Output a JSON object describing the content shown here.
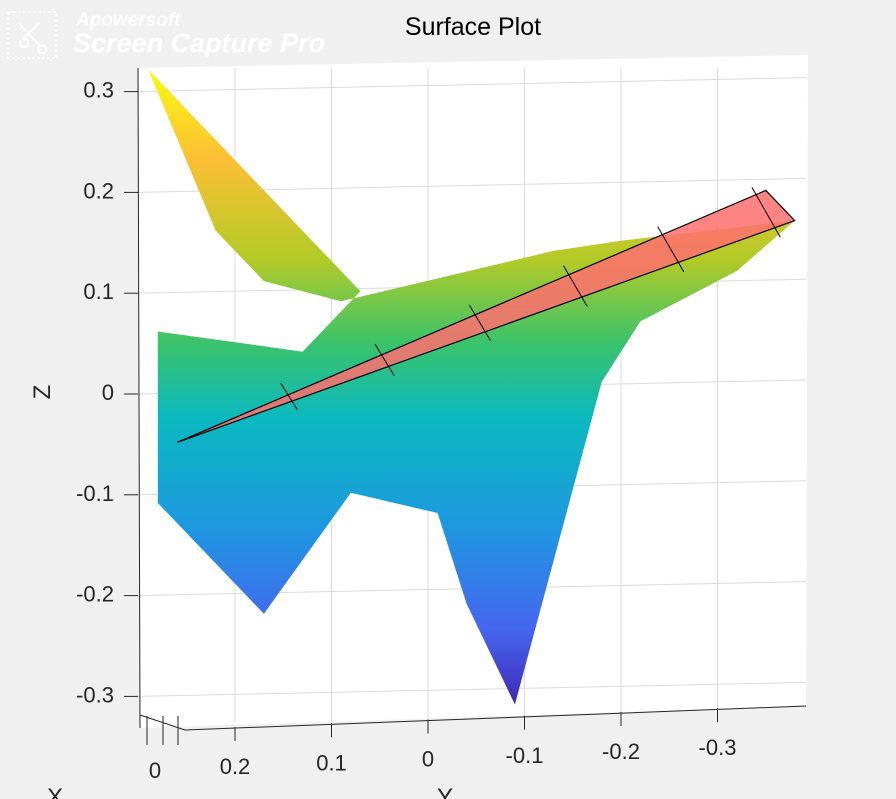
{
  "watermark": {
    "brand": "Apowersoft",
    "product": "Screen Capture Pro",
    "logo_icon": "scissors-pen-icon"
  },
  "chart_data": {
    "type": "surface",
    "title": "Surface Plot",
    "zlabel": "Z",
    "ylabel": "Y",
    "xlabel": "X",
    "z_ticks": [
      "0.3",
      "0.2",
      "0.1",
      "0",
      "-0.1",
      "-0.2",
      "-0.3"
    ],
    "y_ticks": [
      "0.2",
      "0.1",
      "0",
      "-0.1",
      "-0.2",
      "-0.3"
    ],
    "x_ticks": [
      "0"
    ],
    "zlim": [
      -0.33,
      0.33
    ],
    "ylim": [
      0.3,
      -0.4
    ],
    "grid": true,
    "colormap": "parula",
    "series": [
      {
        "kind": "surface",
        "outline_yz": [
          [
            0.29,
            0.32
          ],
          [
            0.22,
            0.16
          ],
          [
            0.17,
            0.11
          ],
          [
            0.09,
            0.09
          ],
          [
            -0.13,
            0.14
          ],
          [
            -0.2,
            0.15
          ],
          [
            -0.38,
            0.17
          ],
          [
            -0.32,
            0.12
          ],
          [
            -0.22,
            0.07
          ],
          [
            -0.18,
            0.01
          ],
          [
            -0.09,
            -0.31
          ],
          [
            -0.04,
            -0.21
          ],
          [
            -0.01,
            -0.12
          ],
          [
            0.08,
            -0.1
          ],
          [
            0.17,
            -0.22
          ],
          [
            0.28,
            -0.11
          ],
          [
            0.28,
            0.06
          ],
          [
            0.13,
            0.04
          ],
          [
            0.07,
            0.1
          ]
        ]
      },
      {
        "kind": "plane",
        "color": "#ff6f6f",
        "outline_yz": [
          [
            0.26,
            -0.05
          ],
          [
            -0.35,
            0.2
          ],
          [
            -0.38,
            0.17
          ],
          [
            0.26,
            -0.05
          ]
        ],
        "segment_marks_y": [
          0.15,
          0.05,
          -0.05,
          -0.15,
          -0.25,
          -0.35
        ]
      }
    ]
  }
}
